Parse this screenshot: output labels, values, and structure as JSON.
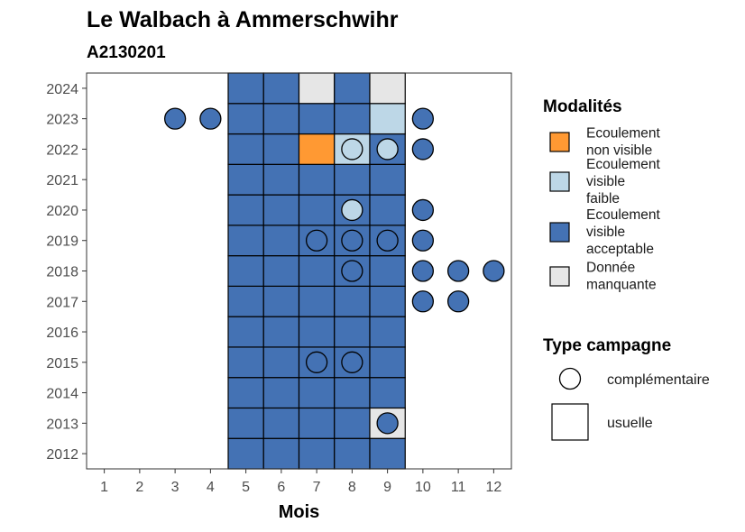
{
  "chart_data": {
    "type": "heatmap",
    "title": "Le Walbach à Ammerschwihr",
    "subtitle": "A2130201",
    "xlabel": "Mois",
    "ylabel": "",
    "x_ticks": [
      "1",
      "2",
      "3",
      "4",
      "5",
      "6",
      "7",
      "8",
      "9",
      "10",
      "11",
      "12"
    ],
    "y_ticks": [
      "2012",
      "2013",
      "2014",
      "2015",
      "2016",
      "2017",
      "2018",
      "2019",
      "2020",
      "2021",
      "2022",
      "2023",
      "2024"
    ],
    "xlim": [
      0.5,
      12.5
    ],
    "ylim": [
      2011.5,
      2024.5
    ],
    "categories": [
      {
        "key": "non_visible",
        "label_lines": [
          "Ecoulement",
          "non visible"
        ],
        "color": "#FF9933"
      },
      {
        "key": "visible_faible",
        "label_lines": [
          "Ecoulement",
          "visible",
          "faible"
        ],
        "color": "#BDD7E7"
      },
      {
        "key": "visible_acceptable",
        "label_lines": [
          "Ecoulement",
          "visible",
          "acceptable"
        ],
        "color": "#4472B4"
      },
      {
        "key": "manquante",
        "label_lines": [
          "Donnée",
          "manquante"
        ],
        "color": "#E6E6E6"
      }
    ],
    "usuelle": {
      "months": [
        5,
        6,
        7,
        8,
        9
      ],
      "rows": [
        {
          "year": 2012,
          "values": [
            "visible_acceptable",
            "visible_acceptable",
            "visible_acceptable",
            "visible_acceptable",
            "visible_acceptable"
          ]
        },
        {
          "year": 2013,
          "values": [
            "visible_acceptable",
            "visible_acceptable",
            "visible_acceptable",
            "visible_acceptable",
            "manquante"
          ]
        },
        {
          "year": 2014,
          "values": [
            "visible_acceptable",
            "visible_acceptable",
            "visible_acceptable",
            "visible_acceptable",
            "visible_acceptable"
          ]
        },
        {
          "year": 2015,
          "values": [
            "visible_acceptable",
            "visible_acceptable",
            "visible_acceptable",
            "visible_acceptable",
            "visible_acceptable"
          ]
        },
        {
          "year": 2016,
          "values": [
            "visible_acceptable",
            "visible_acceptable",
            "visible_acceptable",
            "visible_acceptable",
            "visible_acceptable"
          ]
        },
        {
          "year": 2017,
          "values": [
            "visible_acceptable",
            "visible_acceptable",
            "visible_acceptable",
            "visible_acceptable",
            "visible_acceptable"
          ]
        },
        {
          "year": 2018,
          "values": [
            "visible_acceptable",
            "visible_acceptable",
            "visible_acceptable",
            "visible_acceptable",
            "visible_acceptable"
          ]
        },
        {
          "year": 2019,
          "values": [
            "visible_acceptable",
            "visible_acceptable",
            "visible_acceptable",
            "visible_acceptable",
            "visible_acceptable"
          ]
        },
        {
          "year": 2020,
          "values": [
            "visible_acceptable",
            "visible_acceptable",
            "visible_acceptable",
            "visible_acceptable",
            "visible_acceptable"
          ]
        },
        {
          "year": 2021,
          "values": [
            "visible_acceptable",
            "visible_acceptable",
            "visible_acceptable",
            "visible_acceptable",
            "visible_acceptable"
          ]
        },
        {
          "year": 2022,
          "values": [
            "visible_acceptable",
            "visible_acceptable",
            "non_visible",
            "visible_faible",
            "visible_acceptable"
          ]
        },
        {
          "year": 2023,
          "values": [
            "visible_acceptable",
            "visible_acceptable",
            "visible_acceptable",
            "visible_acceptable",
            "visible_faible"
          ]
        },
        {
          "year": 2024,
          "values": [
            "visible_acceptable",
            "visible_acceptable",
            "manquante",
            "visible_acceptable",
            "manquante"
          ]
        }
      ]
    },
    "complementaire": [
      {
        "year": 2013,
        "month": 9,
        "value": "visible_acceptable"
      },
      {
        "year": 2015,
        "month": 7,
        "value": "visible_acceptable"
      },
      {
        "year": 2015,
        "month": 8,
        "value": "visible_acceptable"
      },
      {
        "year": 2017,
        "month": 10,
        "value": "visible_acceptable"
      },
      {
        "year": 2017,
        "month": 11,
        "value": "visible_acceptable"
      },
      {
        "year": 2018,
        "month": 8,
        "value": "visible_acceptable"
      },
      {
        "year": 2018,
        "month": 10,
        "value": "visible_acceptable"
      },
      {
        "year": 2018,
        "month": 11,
        "value": "visible_acceptable"
      },
      {
        "year": 2018,
        "month": 12,
        "value": "visible_acceptable"
      },
      {
        "year": 2019,
        "month": 7,
        "value": "visible_acceptable"
      },
      {
        "year": 2019,
        "month": 8,
        "value": "visible_acceptable"
      },
      {
        "year": 2019,
        "month": 9,
        "value": "visible_acceptable"
      },
      {
        "year": 2019,
        "month": 10,
        "value": "visible_acceptable"
      },
      {
        "year": 2020,
        "month": 8,
        "value": "visible_faible"
      },
      {
        "year": 2020,
        "month": 10,
        "value": "visible_acceptable"
      },
      {
        "year": 2022,
        "month": 8,
        "value": "visible_faible"
      },
      {
        "year": 2022,
        "month": 9,
        "value": "visible_faible"
      },
      {
        "year": 2022,
        "month": 10,
        "value": "visible_acceptable"
      },
      {
        "year": 2023,
        "month": 3,
        "value": "visible_acceptable"
      },
      {
        "year": 2023,
        "month": 4,
        "value": "visible_acceptable"
      },
      {
        "year": 2023,
        "month": 10,
        "value": "visible_acceptable"
      }
    ],
    "legend": {
      "placement": "right",
      "fill_title": "Modalités",
      "shape_title": "Type campagne",
      "shape_items": [
        {
          "key": "complementaire",
          "label": "complémentaire"
        },
        {
          "key": "usuelle",
          "label": "usuelle"
        }
      ]
    },
    "grid": false
  }
}
